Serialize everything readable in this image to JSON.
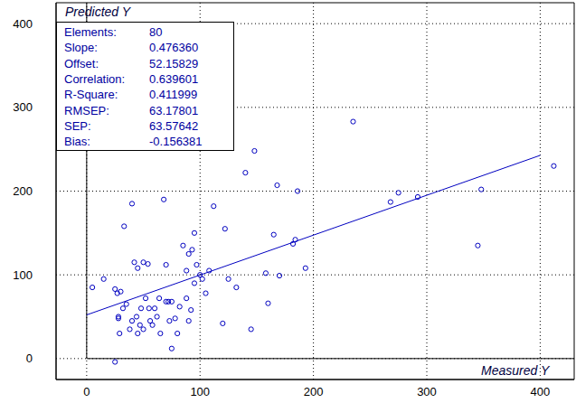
{
  "chart_data": {
    "type": "scatter",
    "x_label": "Measured Y",
    "y_label": "Predicted Y",
    "xlim": [
      -27,
      430
    ],
    "ylim": [
      -25,
      425
    ],
    "xticks": [
      0,
      100,
      200,
      300,
      400
    ],
    "yticks": [
      0,
      100,
      200,
      300,
      400
    ],
    "grid": true,
    "color": "#0000c0",
    "marker": "circle",
    "x": [
      5,
      15,
      25,
      25,
      27,
      28,
      28,
      29,
      30,
      32,
      33,
      35,
      38,
      40,
      40,
      42,
      44,
      45,
      45,
      47,
      48,
      50,
      50,
      52,
      54,
      55,
      56,
      58,
      60,
      62,
      64,
      65,
      68,
      70,
      70,
      72,
      73,
      75,
      75,
      78,
      80,
      82,
      85,
      88,
      88,
      90,
      90,
      92,
      93,
      95,
      95,
      97,
      100,
      102,
      105,
      108,
      112,
      120,
      122,
      125,
      132,
      140,
      145,
      148,
      158,
      160,
      165,
      168,
      170,
      182,
      184,
      186,
      193,
      235,
      268,
      275,
      292,
      345,
      348,
      412
    ],
    "y": [
      85,
      95,
      -4,
      83,
      78,
      48,
      50,
      30,
      80,
      60,
      158,
      65,
      35,
      45,
      185,
      115,
      50,
      30,
      108,
      40,
      60,
      115,
      35,
      72,
      113,
      60,
      45,
      40,
      60,
      50,
      72,
      30,
      190,
      112,
      68,
      68,
      45,
      68,
      12,
      48,
      30,
      62,
      135,
      105,
      72,
      125,
      45,
      58,
      130,
      150,
      90,
      112,
      100,
      95,
      78,
      105,
      182,
      42,
      155,
      95,
      85,
      222,
      35,
      248,
      102,
      66,
      148,
      207,
      99,
      137,
      142,
      200,
      108,
      283,
      187,
      198,
      193,
      135,
      202,
      230
    ],
    "stats": [
      {
        "name": "Elements:",
        "value": 80,
        "label": "80"
      },
      {
        "name": "Slope:",
        "value": 0.47636,
        "label": "0.476360"
      },
      {
        "name": "Offset:",
        "value": 52.15829,
        "label": "52.15829"
      },
      {
        "name": "Correlation:",
        "value": 0.639601,
        "label": "0.639601"
      },
      {
        "name": "R-Square:",
        "value": 0.411999,
        "label": "0.411999"
      },
      {
        "name": "RMSEP:",
        "value": 63.17801,
        "label": "63.17801"
      },
      {
        "name": "SEP:",
        "value": 63.57642,
        "label": "63.57642"
      },
      {
        "name": "Bias:",
        "value": -0.156381,
        "label": "-0.156381"
      }
    ],
    "fit_line": {
      "x": [
        0,
        400
      ],
      "color": "#0000c0"
    }
  }
}
